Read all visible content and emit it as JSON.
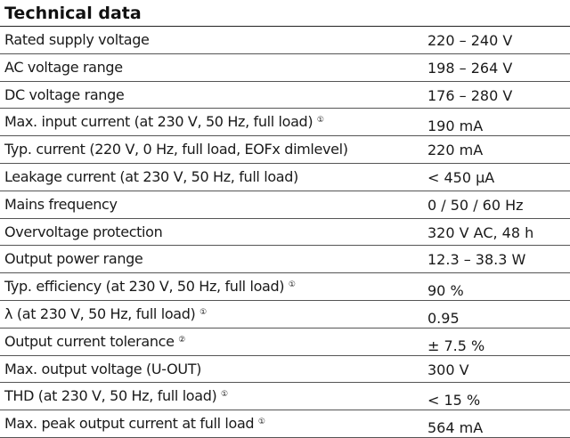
{
  "title": "Technical data",
  "rows": [
    {
      "label": "Rated supply voltage",
      "note": "",
      "value": "220 – 240 V"
    },
    {
      "label": "AC voltage range",
      "note": "",
      "value": "198 – 264 V"
    },
    {
      "label": "DC voltage range",
      "note": "",
      "value": "176 – 280 V"
    },
    {
      "label": "Max. input current (at 230 V, 50 Hz, full load)",
      "note": "①",
      "value": "190 mA"
    },
    {
      "label": "Typ. current (220 V, 0 Hz, full load, EOFx dimlevel)",
      "note": "",
      "value": "220 mA"
    },
    {
      "label": "Leakage current (at 230 V, 50 Hz, full load)",
      "note": "",
      "value": "< 450 µA"
    },
    {
      "label": "Mains frequency",
      "note": "",
      "value": "0 / 50 / 60 Hz"
    },
    {
      "label": "Overvoltage protection",
      "note": "",
      "value": "320 V AC, 48 h"
    },
    {
      "label": "Output power range",
      "note": "",
      "value": "12.3 – 38.3 W"
    },
    {
      "label": "Typ. efficiency (at 230 V, 50 Hz, full load)",
      "note": "①",
      "value": "90 %"
    },
    {
      "label": "λ (at 230 V, 50 Hz, full load)",
      "note": "①",
      "value": "0.95"
    },
    {
      "label": "Output current tolerance",
      "note": "②",
      "value": "± 7.5 %"
    },
    {
      "label": "Max. output voltage (U-OUT)",
      "note": "",
      "value": "300 V"
    },
    {
      "label": "THD (at 230 V, 50 Hz, full load)",
      "note": "①",
      "value": "< 15 %"
    },
    {
      "label": "Max. peak output current at full load",
      "note": "①",
      "value": "564 mA"
    }
  ]
}
